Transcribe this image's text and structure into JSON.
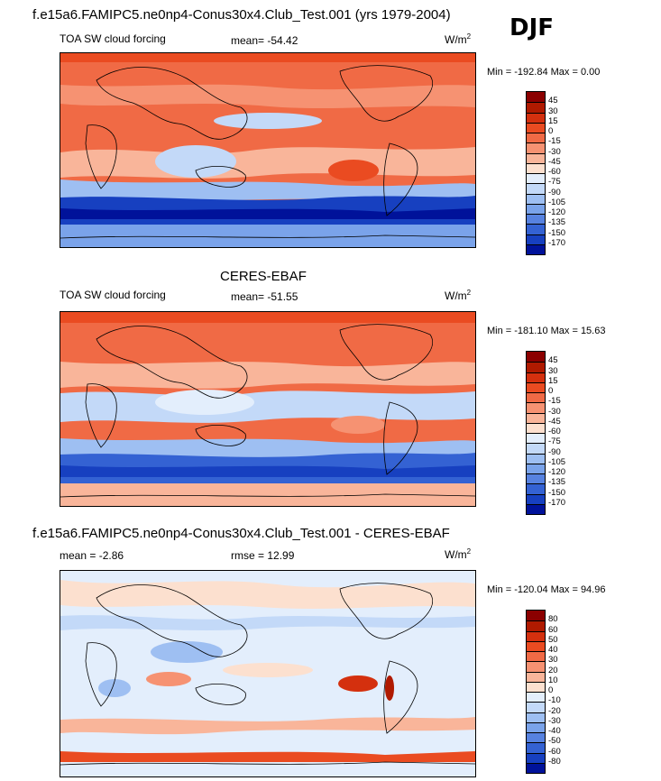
{
  "figure": {
    "case_title": "f.e15a6.FAMIPC5.ne0np4-Conus30x4.Club_Test.001 (yrs 1979-2004)",
    "season": "DJF"
  },
  "panels": [
    {
      "id": "model",
      "header": "",
      "left_label": "TOA SW cloud forcing",
      "center_label": "mean= -54.42",
      "units_label": "W/m",
      "units_sup": "2",
      "minmax": "Min = -192.84 Max =   0.00",
      "colorbar": {
        "levels": [
          "45",
          "30",
          "15",
          "0",
          "-15",
          "-30",
          "-45",
          "-60",
          "-75",
          "-90",
          "-105",
          "-120",
          "-135",
          "-150",
          "-170"
        ],
        "colors": [
          "#8b0000",
          "#b01a00",
          "#d4300e",
          "#ea4b21",
          "#f06a45",
          "#f69272",
          "#f9b59a",
          "#fce0cf",
          "#e3eefc",
          "#c3d9f8",
          "#9ebff2",
          "#7aa3ea",
          "#5782e0",
          "#3462d3",
          "#1740c0",
          "#00129a"
        ]
      }
    },
    {
      "id": "obs",
      "header": "CERES-EBAF",
      "left_label": "TOA SW cloud forcing",
      "center_label": "mean= -51.55",
      "units_label": "W/m",
      "units_sup": "2",
      "minmax": "Min = -181.10 Max =  15.63",
      "colorbar": {
        "levels": [
          "45",
          "30",
          "15",
          "0",
          "-15",
          "-30",
          "-45",
          "-60",
          "-75",
          "-90",
          "-105",
          "-120",
          "-135",
          "-150",
          "-170"
        ],
        "colors": [
          "#8b0000",
          "#b01a00",
          "#d4300e",
          "#ea4b21",
          "#f06a45",
          "#f69272",
          "#f9b59a",
          "#fce0cf",
          "#e3eefc",
          "#c3d9f8",
          "#9ebff2",
          "#7aa3ea",
          "#5782e0",
          "#3462d3",
          "#1740c0",
          "#00129a"
        ]
      }
    },
    {
      "id": "diff",
      "header": "f.e15a6.FAMIPC5.ne0np4-Conus30x4.Club_Test.001 - CERES-EBAF",
      "left_label": "mean =  -2.86",
      "center_label": "rmse =  12.99",
      "units_label": "W/m",
      "units_sup": "2",
      "minmax": "Min = -120.04 Max =  94.96",
      "colorbar": {
        "levels": [
          "80",
          "60",
          "50",
          "40",
          "30",
          "20",
          "10",
          "0",
          "-10",
          "-20",
          "-30",
          "-40",
          "-50",
          "-60",
          "-80"
        ],
        "colors": [
          "#8b0000",
          "#b01a00",
          "#d4300e",
          "#ea4b21",
          "#f06a45",
          "#f69272",
          "#f9b59a",
          "#fce0cf",
          "#e3eefc",
          "#c3d9f8",
          "#9ebff2",
          "#7aa3ea",
          "#5782e0",
          "#3462d3",
          "#1740c0",
          "#00129a"
        ]
      }
    }
  ]
}
